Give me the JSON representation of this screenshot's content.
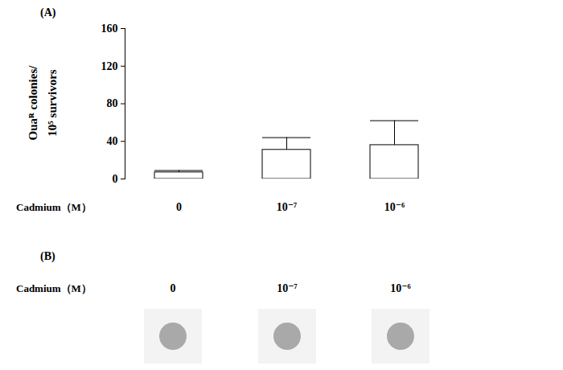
{
  "chart_data": {
    "type": "bar",
    "panel_label": "(A)",
    "categories": [
      "0",
      "10⁻⁷",
      "10⁻⁶"
    ],
    "values": [
      7,
      31,
      36
    ],
    "errors": [
      2,
      13,
      26
    ],
    "xlabel": "Cadmium（M）",
    "ylabel": "Ouaᴿ colonies/ 10⁵ survivors",
    "ylim": [
      0,
      160
    ],
    "yticks": [
      0,
      40,
      80,
      120,
      160
    ],
    "color": "#ffffff",
    "grid": false
  },
  "panel_b": {
    "panel_label": "(B)",
    "axis_label": "Cadmium（M）",
    "lanes": [
      "0",
      "10⁻⁷",
      "10⁻⁶"
    ]
  }
}
